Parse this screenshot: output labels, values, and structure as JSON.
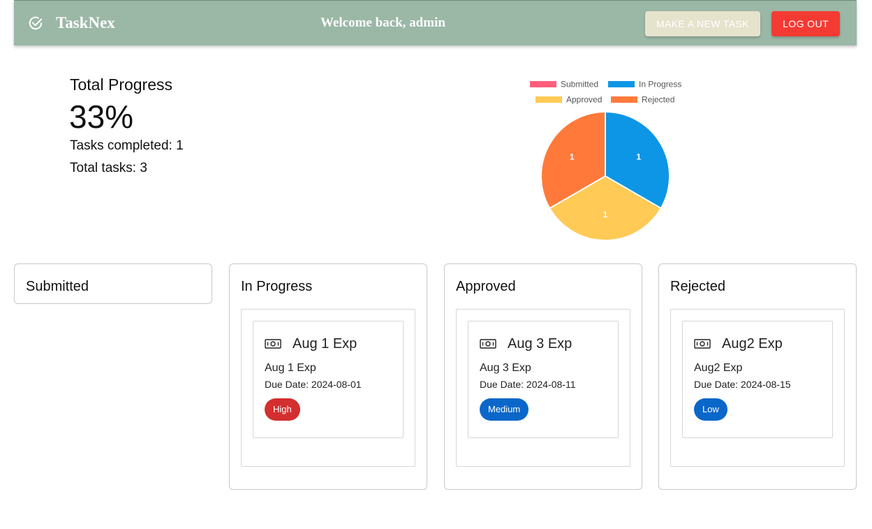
{
  "header": {
    "brand": "TaskNex",
    "welcome": "Welcome back, admin",
    "new_task_label": "MAKE A NEW TASK",
    "logout_label": "LOG OUT"
  },
  "progress": {
    "title": "Total Progress",
    "percent": "33%",
    "completed": "Tasks completed: 1",
    "total": "Total tasks: 3"
  },
  "chart_data": {
    "type": "pie",
    "categories": [
      "Submitted",
      "In Progress",
      "Approved",
      "Rejected"
    ],
    "values": [
      0,
      1,
      1,
      1
    ],
    "colors": [
      "#ff5d7a",
      "#0d96e6",
      "#ffca55",
      "#ff7a3a"
    ],
    "legend_position": "top"
  },
  "columns": [
    {
      "title": "Submitted",
      "cards": []
    },
    {
      "title": "In Progress",
      "cards": [
        {
          "title": "Aug 1 Exp",
          "subtitle": "Aug 1 Exp",
          "due": "Due Date: 2024-08-01",
          "priority": "High",
          "priority_color": "#d32f2f"
        }
      ]
    },
    {
      "title": "Approved",
      "cards": [
        {
          "title": "Aug 3 Exp",
          "subtitle": "Aug 3 Exp",
          "due": "Due Date: 2024-08-11",
          "priority": "Medium",
          "priority_color": "#0a67c9"
        }
      ]
    },
    {
      "title": "Rejected",
      "cards": [
        {
          "title": "Aug2 Exp",
          "subtitle": "Aug2 Exp",
          "due": "Due Date: 2024-08-15",
          "priority": "Low",
          "priority_color": "#0a67c9"
        }
      ]
    }
  ]
}
